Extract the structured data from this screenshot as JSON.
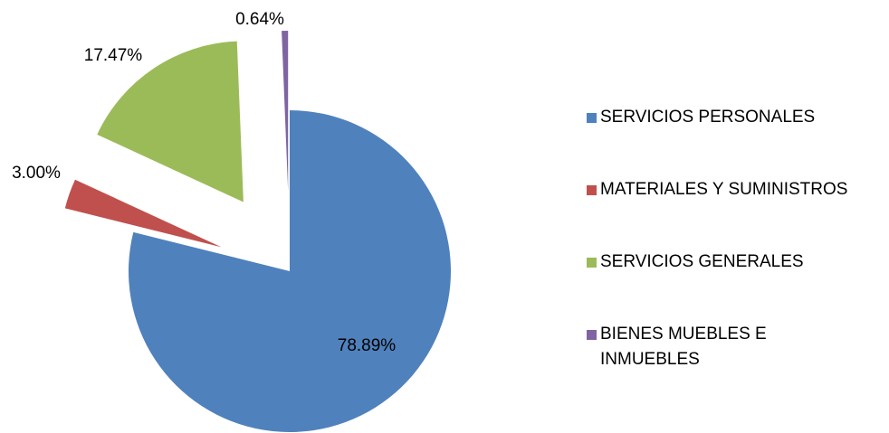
{
  "chart_data": {
    "type": "pie",
    "categories": [
      "SERVICIOS PERSONALES",
      "MATERIALES Y SUMINISTROS",
      "SERVICIOS GENERALES",
      "BIENES MUEBLES E INMUEBLES"
    ],
    "values": [
      78.89,
      3.0,
      17.47,
      0.64
    ],
    "value_labels": [
      "78.89%",
      "3.00%",
      "17.47%",
      "0.64%"
    ],
    "colors": [
      "#4f81bd",
      "#c0504d",
      "#9bbb59",
      "#8064a2"
    ],
    "legend": "right"
  }
}
